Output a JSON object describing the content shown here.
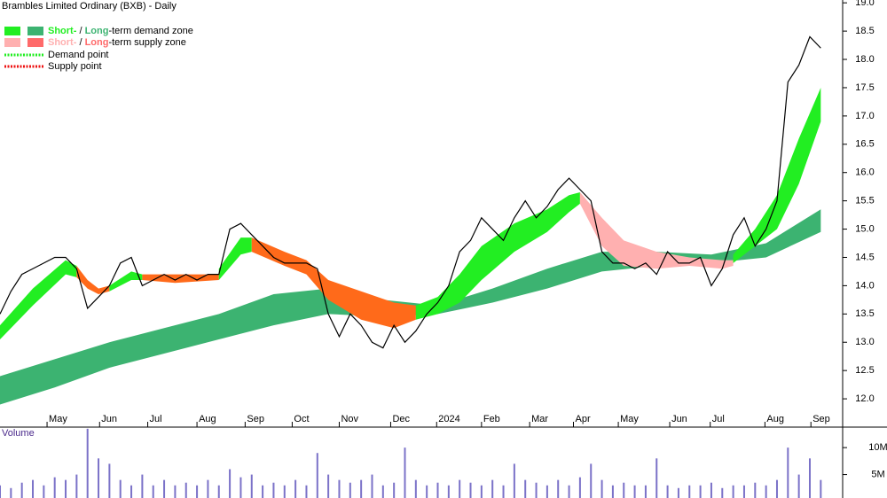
{
  "chart_data": [
    {
      "type": "line",
      "title": "Brambles Limited Ordinary (BXB) - Daily",
      "color": "#000000",
      "x": [
        0,
        1,
        2,
        3,
        4,
        5,
        6,
        7,
        8,
        9,
        10,
        11,
        12,
        13,
        14,
        15,
        16,
        17,
        18,
        19,
        20,
        21,
        22,
        23,
        24,
        25,
        26,
        27,
        28,
        29,
        30,
        31,
        32,
        33,
        34,
        35,
        36,
        37,
        38,
        39,
        40,
        41,
        42,
        43,
        44,
        45,
        46,
        47,
        48,
        49,
        50,
        51,
        52,
        53,
        54,
        55,
        56,
        57,
        58,
        59,
        60,
        61,
        62,
        63,
        64,
        65,
        66,
        67,
        68,
        69,
        70,
        71,
        72,
        73,
        74,
        75
      ],
      "values": [
        13.5,
        13.9,
        14.2,
        14.3,
        14.4,
        14.5,
        14.5,
        14.3,
        13.6,
        13.8,
        14.0,
        14.4,
        14.5,
        14.0,
        14.1,
        14.2,
        14.1,
        14.2,
        14.1,
        14.2,
        14.2,
        15.0,
        15.1,
        14.9,
        14.7,
        14.5,
        14.4,
        14.4,
        14.4,
        14.3,
        13.5,
        13.1,
        13.5,
        13.3,
        13.0,
        12.9,
        13.3,
        13.0,
        13.2,
        13.5,
        13.7,
        14.0,
        14.6,
        14.8,
        15.2,
        15.0,
        14.8,
        15.2,
        15.5,
        15.2,
        15.4,
        15.7,
        15.9,
        15.7,
        15.5,
        14.6,
        14.4,
        14.4,
        14.3,
        14.4,
        14.2,
        14.6,
        14.4,
        14.4,
        14.5,
        14.0,
        14.3,
        14.9,
        15.2,
        14.7,
        15.0,
        15.5,
        17.6,
        17.9,
        18.4,
        18.2
      ],
      "xlim": [
        0,
        77
      ],
      "xticks": [
        {
          "value": 4.3,
          "label": "May"
        },
        {
          "value": 9.1,
          "label": "Jun"
        },
        {
          "value": 13.5,
          "label": "Jul"
        },
        {
          "value": 18,
          "label": "Aug"
        },
        {
          "value": 22.4,
          "label": "Sep"
        },
        {
          "value": 26.7,
          "label": "Oct"
        },
        {
          "value": 31,
          "label": "Nov"
        },
        {
          "value": 35.7,
          "label": "Dec"
        },
        {
          "value": 39.9,
          "label": "2024"
        },
        {
          "value": 44,
          "label": "Feb"
        },
        {
          "value": 48.4,
          "label": "Mar"
        },
        {
          "value": 52.4,
          "label": "Apr"
        },
        {
          "value": 56.5,
          "label": "May"
        },
        {
          "value": 61.2,
          "label": "Jun"
        },
        {
          "value": 64.9,
          "label": "Jul"
        },
        {
          "value": 69.9,
          "label": "Aug"
        },
        {
          "value": 74.1,
          "label": "Sep"
        }
      ],
      "ylim": [
        11.5,
        19.05
      ],
      "yticks": [
        {
          "value": 12,
          "label": "12.0"
        },
        12.5,
        {
          "value": 13,
          "label": "13.0"
        },
        13.5,
        {
          "value": 14,
          "label": "14.0"
        },
        14.5,
        {
          "value": 15,
          "label": "15.0"
        },
        15.5,
        {
          "value": 16,
          "label": "16.0"
        },
        16.5,
        {
          "value": 17,
          "label": "17.0"
        },
        17.5,
        {
          "value": 18,
          "label": "18.0"
        },
        18.5,
        {
          "value": 19,
          "label": "19.0"
        }
      ],
      "bands": [
        {
          "color": "#3cb371",
          "x": [
            0,
            5,
            10,
            15,
            20,
            25,
            30,
            35,
            40,
            45,
            50,
            55,
            60,
            65,
            70,
            75
          ],
          "upper": [
            12.4,
            12.7,
            13.0,
            13.25,
            13.5,
            13.85,
            13.95,
            13.75,
            13.65,
            13.95,
            14.3,
            14.6,
            14.6,
            14.55,
            14.75,
            15.35
          ],
          "lower": [
            11.9,
            12.2,
            12.55,
            12.8,
            13.05,
            13.3,
            13.5,
            13.45,
            13.5,
            13.7,
            13.95,
            14.25,
            14.35,
            14.4,
            14.5,
            14.95
          ]
        },
        {
          "color": "#22ee22",
          "x": [
            0,
            3,
            6,
            7
          ],
          "upper": [
            13.3,
            13.95,
            14.45,
            14.35
          ],
          "lower": [
            13.05,
            13.65,
            14.2,
            14.15
          ]
        },
        {
          "color": "#ff6a1a",
          "x": [
            7,
            8,
            9,
            10
          ],
          "upper": [
            14.35,
            14.1,
            13.95,
            14.0
          ],
          "lower": [
            14.15,
            13.95,
            13.85,
            13.9
          ]
        },
        {
          "color": "#22ee22",
          "x": [
            10,
            12,
            13
          ],
          "upper": [
            14.0,
            14.25,
            14.2
          ],
          "lower": [
            13.9,
            14.1,
            14.1
          ]
        },
        {
          "color": "#ff6a1a",
          "x": [
            13,
            16,
            20
          ],
          "upper": [
            14.2,
            14.2,
            14.2
          ],
          "lower": [
            14.1,
            14.05,
            14.1
          ]
        },
        {
          "color": "#22ee22",
          "x": [
            20,
            22,
            23
          ],
          "upper": [
            14.3,
            14.85,
            14.85
          ],
          "lower": [
            14.1,
            14.55,
            14.6
          ]
        },
        {
          "color": "#ff6a1a",
          "x": [
            23,
            26,
            28,
            30,
            33,
            36,
            38
          ],
          "upper": [
            14.85,
            14.6,
            14.45,
            14.1,
            13.9,
            13.7,
            13.65
          ],
          "lower": [
            14.6,
            14.35,
            14.2,
            13.75,
            13.4,
            13.25,
            13.4
          ]
        },
        {
          "color": "#22ee22",
          "x": [
            38,
            40,
            42,
            44,
            47,
            50,
            52,
            53
          ],
          "upper": [
            13.65,
            13.8,
            14.2,
            14.7,
            15.1,
            15.35,
            15.6,
            15.65
          ],
          "lower": [
            13.4,
            13.5,
            13.7,
            14.1,
            14.6,
            14.95,
            15.3,
            15.45
          ]
        },
        {
          "color": "#ffb0b0",
          "x": [
            53,
            55,
            57,
            60,
            63,
            66,
            67
          ],
          "upper": [
            15.65,
            15.2,
            14.8,
            14.6,
            14.5,
            14.45,
            14.45
          ],
          "lower": [
            15.45,
            14.7,
            14.35,
            14.3,
            14.35,
            14.3,
            14.35
          ]
        },
        {
          "color": "#22ee22",
          "x": [
            67,
            69,
            71,
            73,
            75
          ],
          "upper": [
            14.55,
            15.0,
            15.6,
            16.6,
            17.5
          ],
          "lower": [
            14.4,
            14.7,
            15.0,
            15.8,
            16.9
          ]
        }
      ],
      "legend": [
        {
          "short": "Short-",
          "sep": " / ",
          "long": "Long",
          "rest": "-term demand zone",
          "short_color": "#22ee22",
          "long_color": "#3cb371"
        },
        {
          "short": "Short-",
          "sep": " / ",
          "long": "Long",
          "rest": "-term supply zone",
          "short_color": "#ffb0b0",
          "long_color": "#ff6a6a"
        },
        {
          "label": "Demand point",
          "color": "#22ee22"
        },
        {
          "label": "Supply point",
          "color": "#ee1111"
        }
      ]
    },
    {
      "type": "bar",
      "title": "Volume",
      "color": "#7b72c8",
      "values": [
        3,
        2.5,
        3.5,
        4,
        3,
        4.5,
        4,
        5,
        13.5,
        8,
        7,
        4,
        3,
        5,
        3,
        4,
        3,
        3.5,
        3,
        4,
        3,
        6,
        4.5,
        5,
        3,
        3.5,
        3,
        4,
        3,
        9,
        5,
        4,
        3.5,
        4,
        5,
        3,
        3.5,
        10,
        4,
        3,
        3.5,
        3,
        4,
        3.5,
        3,
        4,
        3,
        7,
        4,
        3.5,
        3,
        4,
        3,
        4.5,
        7,
        4,
        3,
        3.5,
        3,
        3,
        8,
        3,
        2.5,
        3,
        3,
        3.5,
        2.5,
        3,
        3,
        3.5,
        3,
        4,
        10,
        5,
        8,
        4
      ],
      "ylim": [
        0,
        13.8
      ],
      "yticks": [
        {
          "value": 5,
          "label": "5M"
        },
        {
          "value": 10,
          "label": "10M"
        }
      ]
    }
  ]
}
